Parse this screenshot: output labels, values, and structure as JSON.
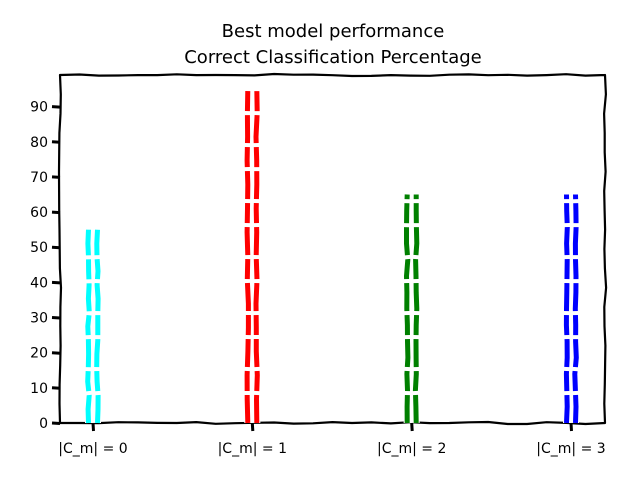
{
  "chart_data": {
    "type": "bar",
    "title_line1": "Best model performance",
    "title_line2": "Correct Classification Percentage",
    "xlabel": "",
    "ylabel": "",
    "categories": [
      "|C_m| = 0",
      "|C_m| = 1",
      "|C_m| = 2",
      "|C_m| = 3"
    ],
    "values": [
      55,
      95,
      65,
      65
    ],
    "colors": [
      "#00ffff",
      "#ff0000",
      "#008000",
      "#0000ff"
    ],
    "ylim": [
      0,
      99
    ],
    "yticks": [
      0,
      10,
      20,
      30,
      40,
      50,
      60,
      70,
      80,
      90
    ],
    "grid": false,
    "style": "xkcd hand-drawn"
  }
}
